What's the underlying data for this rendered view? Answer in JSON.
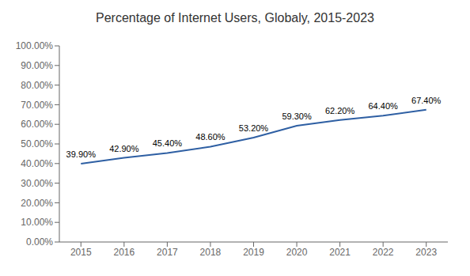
{
  "chart_data": {
    "type": "line",
    "title": "Percentage of Internet Users, Globaly, 2015-2023",
    "x": [
      2015,
      2016,
      2017,
      2018,
      2019,
      2020,
      2021,
      2022,
      2023
    ],
    "values": [
      39.9,
      42.9,
      45.4,
      48.6,
      53.2,
      59.3,
      62.2,
      64.4,
      67.4
    ],
    "value_labels": [
      "39.90%",
      "42.90%",
      "45.40%",
      "48.60%",
      "53.20%",
      "59.30%",
      "62.20%",
      "64.40%",
      "67.40%"
    ],
    "color": "#2E5FA3",
    "xlim": [
      2014.5,
      2023.5
    ],
    "xticks": [
      2015,
      2016,
      2017,
      2018,
      2019,
      2020,
      2021,
      2022,
      2023
    ],
    "ylim": [
      0,
      100
    ],
    "yticks": [
      {
        "value": 0,
        "label": "0.00%"
      },
      {
        "value": 10,
        "label": "10.00%"
      },
      {
        "value": 20,
        "label": "20.00%"
      },
      {
        "value": 30,
        "label": "30.00%"
      },
      {
        "value": 40,
        "label": "40.00%"
      },
      {
        "value": 50,
        "label": "50.00%"
      },
      {
        "value": 60,
        "label": "60.00%"
      },
      {
        "value": 70,
        "label": "70.00%"
      },
      {
        "value": 80,
        "label": "80.00%"
      },
      {
        "value": 90,
        "label": "90.00%"
      },
      {
        "value": 100,
        "label": "100.00%"
      }
    ],
    "grid": false,
    "data_labels": true
  }
}
